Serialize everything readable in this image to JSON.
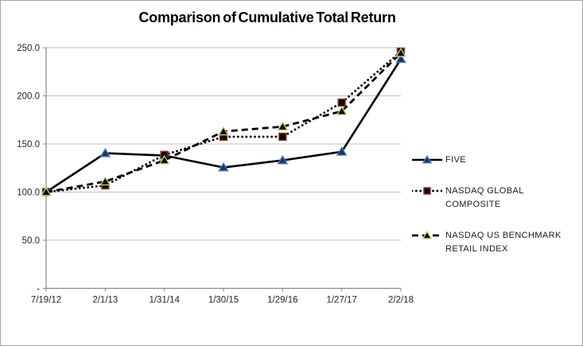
{
  "title": "Comparison of Cumulative Total Return",
  "colors": {
    "gridline": "#bfbfbf",
    "axis": "#898989",
    "tick_label": "#262626",
    "line": "#000000",
    "five_marker_edge": "#5b7fbd",
    "five_marker_fill": "#17375e",
    "composite_marker_edge": "#8e3a38",
    "composite_marker_fill": "#0d0d0d",
    "retail_marker_edge": "#c3d581",
    "retail_marker_fill": "#0d0d0d"
  },
  "chart_data": {
    "type": "line",
    "title": "Comparison of Cumulative Total Return",
    "xlabel": "",
    "ylabel": "",
    "categories": [
      "7/19/12",
      "2/1/13",
      "1/31/14",
      "1/30/15",
      "1/29/16",
      "1/27/17",
      "2/2/18"
    ],
    "series": [
      {
        "name": "FIVE",
        "values": [
          100.0,
          140.4,
          138.0,
          125.6,
          133.0,
          141.9,
          238.2
        ],
        "line_style": "solid",
        "line_color": "#000000",
        "marker": "triangle",
        "marker_fill": "#17375e",
        "marker_edge": "#5b7fbd"
      },
      {
        "name": "NASDAQ GLOBAL COMPOSITE",
        "values": [
          100.0,
          107.0,
          138.6,
          157.5,
          157.5,
          193.0,
          246.0
        ],
        "line_style": "dotted",
        "line_color": "#000000",
        "marker": "square",
        "marker_fill": "#0d0d0d",
        "marker_edge": "#8e3a38"
      },
      {
        "name": "NASDAQ US BENCHMARK RETAIL INDEX",
        "values": [
          100.0,
          111.0,
          133.0,
          163.0,
          168.0,
          184.0,
          244.5
        ],
        "line_style": "dashed",
        "line_color": "#000000",
        "marker": "triangle",
        "marker_fill": "#0d0d0d",
        "marker_edge": "#c3d581"
      }
    ],
    "y_axis": {
      "tick_values": [
        0,
        50,
        100,
        150,
        200,
        250
      ],
      "tick_labels": [
        "-",
        "50.0",
        "100.0",
        "150.0",
        "200.0",
        "250.0"
      ]
    },
    "ylim": [
      0,
      250
    ],
    "grid": "horizontal",
    "legend_position": "right"
  }
}
